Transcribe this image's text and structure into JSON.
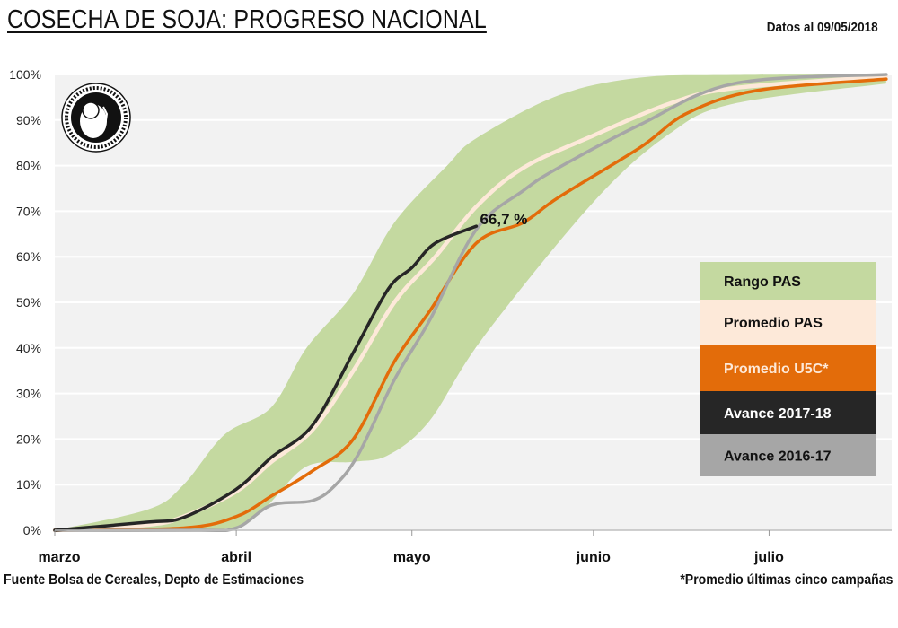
{
  "header": {
    "title": "COSECHA DE SOJA: PROGRESO NACIONAL",
    "date_note": "Datos al 09/05/2018"
  },
  "footer": {
    "source": "Fuente Bolsa de Cereales, Depto de Estimaciones",
    "note": "*Promedio últimas cinco campañas"
  },
  "logo": {
    "text": "Constantia et Labore · Buenos Aires · 1854"
  },
  "chart_data": {
    "type": "line",
    "title": "COSECHA DE SOJA: PROGRESO NACIONAL",
    "xlabel": "",
    "ylabel": "",
    "x_ticks": [
      {
        "label": "marzo",
        "date": "03-01"
      },
      {
        "label": "abril",
        "date": "04-01"
      },
      {
        "label": "mayo",
        "date": "05-01"
      },
      {
        "label": "junio",
        "date": "06-01"
      },
      {
        "label": "julio",
        "date": "07-01"
      }
    ],
    "xlim": [
      "03-01",
      "07-21"
    ],
    "ylim": [
      0,
      100
    ],
    "y_ticks": [
      "0%",
      "10%",
      "20%",
      "30%",
      "40%",
      "50%",
      "60%",
      "70%",
      "80%",
      "90%",
      "100%"
    ],
    "grid": true,
    "legend_placement": "right",
    "annotation": {
      "text": "66,7 %",
      "date": "05-12",
      "value": 66.7
    },
    "band": {
      "name": "Rango PAS",
      "color": "#c4d9a0",
      "upper": [
        [
          "03-01",
          0
        ],
        [
          "03-17",
          4.6
        ],
        [
          "03-23",
          10
        ],
        [
          "03-30",
          21
        ],
        [
          "04-07",
          27
        ],
        [
          "04-13",
          40
        ],
        [
          "04-21",
          52
        ],
        [
          "04-28",
          67.5
        ],
        [
          "05-07",
          80
        ],
        [
          "05-12",
          86
        ],
        [
          "05-26",
          95.4
        ],
        [
          "06-09",
          99.3
        ],
        [
          "06-25",
          99.9
        ],
        [
          "07-21",
          100
        ]
      ],
      "lower": [
        [
          "03-01",
          0
        ],
        [
          "03-20",
          0
        ],
        [
          "04-01",
          0.7
        ],
        [
          "04-06",
          5
        ],
        [
          "04-13",
          14
        ],
        [
          "04-21",
          15
        ],
        [
          "04-27",
          16.5
        ],
        [
          "05-04",
          24
        ],
        [
          "05-13",
          42
        ],
        [
          "06-01",
          72
        ],
        [
          "06-14",
          87
        ],
        [
          "06-25",
          93.6
        ],
        [
          "07-21",
          98
        ]
      ]
    },
    "series": [
      {
        "name": "Promedio PAS",
        "color": "#fde9d9",
        "width": 4.5,
        "points": [
          [
            "03-01",
            0
          ],
          [
            "03-17",
            1.2
          ],
          [
            "03-23",
            3
          ],
          [
            "04-01",
            8.5
          ],
          [
            "04-07",
            15
          ],
          [
            "04-14",
            22
          ],
          [
            "04-21",
            35
          ],
          [
            "04-28",
            50
          ],
          [
            "05-05",
            60
          ],
          [
            "05-12",
            71
          ],
          [
            "05-20",
            79.5
          ],
          [
            "06-01",
            86.6
          ],
          [
            "06-14",
            93.6
          ],
          [
            "06-25",
            97
          ],
          [
            "07-21",
            99.6
          ]
        ]
      },
      {
        "name": "Promedio U5C*",
        "color": "#e36c0a",
        "width": 3.5,
        "points": [
          [
            "03-01",
            0
          ],
          [
            "03-23",
            0.5
          ],
          [
            "04-01",
            3
          ],
          [
            "04-07",
            7.5
          ],
          [
            "04-14",
            13
          ],
          [
            "04-21",
            20
          ],
          [
            "04-28",
            37
          ],
          [
            "05-04",
            48
          ],
          [
            "05-12",
            63
          ],
          [
            "05-20",
            67.5
          ],
          [
            "05-26",
            73
          ],
          [
            "06-09",
            84
          ],
          [
            "06-17",
            91.5
          ],
          [
            "06-29",
            96.5
          ],
          [
            "07-21",
            99
          ]
        ]
      },
      {
        "name": "Avance 2016-17",
        "color": "#a6a6a6",
        "width": 3.5,
        "points": [
          [
            "03-01",
            0
          ],
          [
            "03-25",
            0
          ],
          [
            "04-01",
            0.5
          ],
          [
            "04-07",
            5.5
          ],
          [
            "04-14",
            6.5
          ],
          [
            "04-18",
            10
          ],
          [
            "04-22",
            17
          ],
          [
            "04-28",
            33
          ],
          [
            "05-04",
            46
          ],
          [
            "05-12",
            66
          ],
          [
            "05-20",
            74.5
          ],
          [
            "05-26",
            79.5
          ],
          [
            "06-09",
            89
          ],
          [
            "06-25",
            98
          ],
          [
            "07-21",
            100
          ]
        ]
      },
      {
        "name": "Avance 2017-18",
        "color": "#262626",
        "width": 3.5,
        "points": [
          [
            "03-01",
            0
          ],
          [
            "03-17",
            1.8
          ],
          [
            "03-23",
            2.8
          ],
          [
            "04-01",
            9
          ],
          [
            "04-07",
            16
          ],
          [
            "04-14",
            23
          ],
          [
            "04-21",
            39
          ],
          [
            "04-27",
            53
          ],
          [
            "05-01",
            57.6
          ],
          [
            "05-05",
            63
          ],
          [
            "05-12",
            66.7
          ]
        ]
      }
    ],
    "legend": [
      {
        "label": "Rango PAS",
        "bg": "#c4d9a0",
        "fg": "#111111"
      },
      {
        "label": "Promedio PAS",
        "bg": "#fde9d9",
        "fg": "#111111"
      },
      {
        "label": "Promedio U5C*",
        "bg": "#e36c0a",
        "fg": "#fde9d9"
      },
      {
        "label": "Avance 2017-18",
        "bg": "#262626",
        "fg": "#ffffff"
      },
      {
        "label": "Avance 2016-17",
        "bg": "#a6a6a6",
        "fg": "#111111"
      }
    ]
  }
}
